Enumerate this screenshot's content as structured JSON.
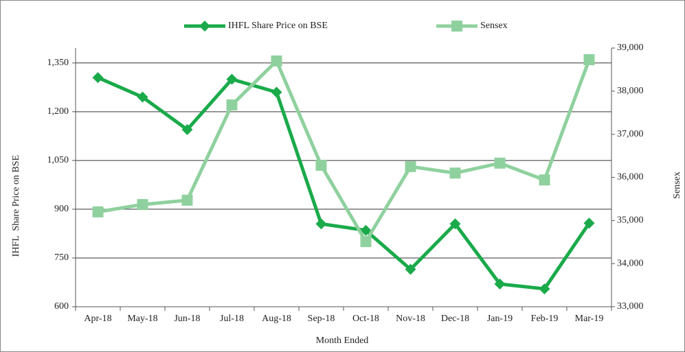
{
  "chart_data": {
    "type": "line",
    "xlabel": "Month Ended",
    "ylabel": "IHFL  Share Price on BSE",
    "y2label": "Sensex",
    "categories": [
      "Apr-18",
      "May-18",
      "Jun-18",
      "Jul-18",
      "Aug-18",
      "Sep-18",
      "Oct-18",
      "Nov-18",
      "Dec-18",
      "Jan-19",
      "Feb-19",
      "Mar-19"
    ],
    "series": [
      {
        "name": "IHFL Share Price on BSE",
        "color": "#1aaa4a",
        "marker": "diamond",
        "values": [
          1305,
          1245,
          1145,
          1300,
          1260,
          855,
          835,
          715,
          855,
          670,
          655,
          857
        ]
      },
      {
        "name": "Sensex",
        "color": "#8fd19e",
        "marker": "square",
        "axis": "y2",
        "values": [
          35200,
          35370,
          35470,
          37680,
          38700,
          36280,
          34510,
          36250,
          36100,
          36330,
          35940,
          38730
        ]
      }
    ],
    "ylim": [
      600,
      1396
    ],
    "yticks": [
      600,
      750,
      900,
      {
        "value": 1050,
        "label": "1,050"
      },
      {
        "value": 1200,
        "label": "1,200"
      },
      {
        "value": 1350,
        "label": "1,350"
      }
    ],
    "y2lim": [
      33000,
      39000
    ],
    "y2ticks": [
      {
        "value": 33000,
        "label": "33,000"
      },
      {
        "value": 34000,
        "label": "34,000"
      },
      {
        "value": 35000,
        "label": "35,000"
      },
      {
        "value": 36000,
        "label": "36,000"
      },
      {
        "value": 37000,
        "label": "37,000"
      },
      {
        "value": 38000,
        "label": "38,000"
      },
      {
        "value": 39000,
        "label": "39,000"
      }
    ],
    "grid": true,
    "legend": "top"
  }
}
